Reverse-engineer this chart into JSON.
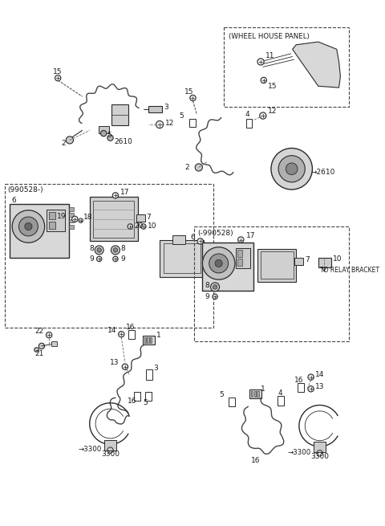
{
  "bg_color": "#ffffff",
  "lc": "#2a2a2a",
  "tc": "#1a1a1a",
  "dc": "#444444",
  "figsize": [
    4.8,
    6.55
  ],
  "dpi": 100,
  "fs": 6.5,
  "labels": {
    "wheel_house_panel": "(WHEEL HOUSE PANEL)",
    "box1": "(990528-)",
    "box2": "(-990528)",
    "relay": "TO RELAY BRACKET",
    "arrow2610": "→2610",
    "arrow3300": "→3300"
  }
}
